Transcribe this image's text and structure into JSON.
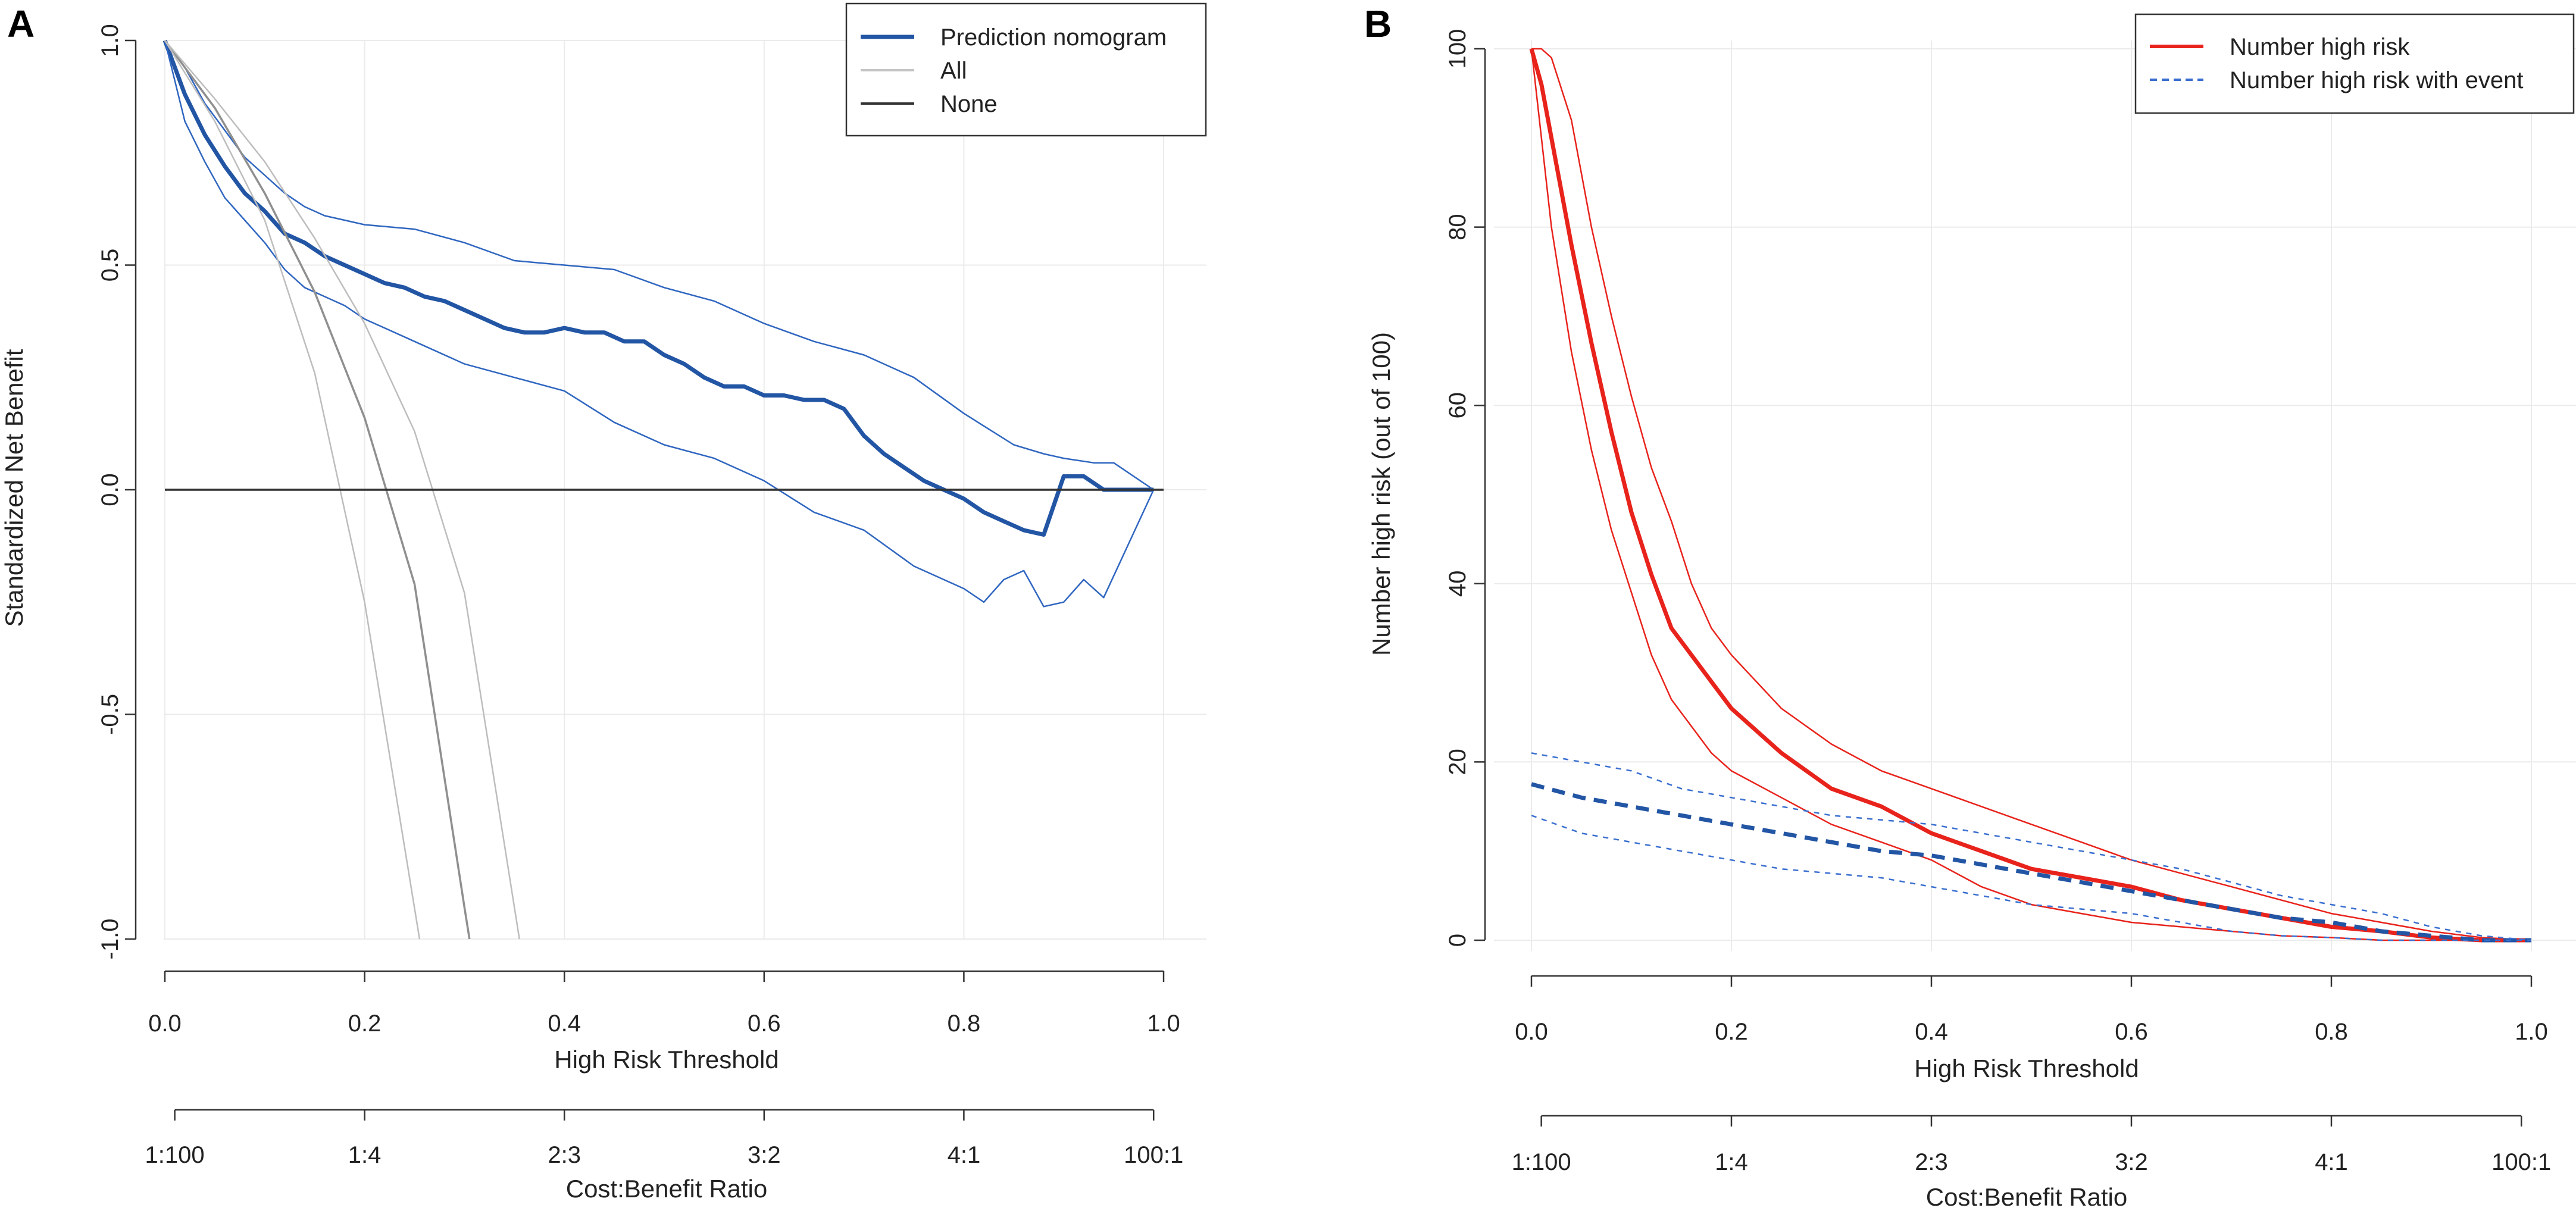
{
  "chart_data": [
    {
      "panel": "A",
      "type": "line",
      "title": "",
      "xlabel": "High Risk Threshold",
      "ylabel": "Standardized Net Benefit",
      "secondary_xlabel": "Cost:Benefit Ratio",
      "xlim": [
        0,
        1
      ],
      "ylim": [
        -1,
        1
      ],
      "xticks": [
        0.0,
        0.2,
        0.4,
        0.6,
        0.8,
        1.0
      ],
      "xtick_labels": [
        "0.0",
        "0.2",
        "0.4",
        "0.6",
        "0.8",
        "1.0"
      ],
      "yticks": [
        -1.0,
        -0.5,
        0.0,
        0.5,
        1.0
      ],
      "ytick_labels": [
        "-1.0",
        "-0.5",
        "0.0",
        "0.5",
        "1.0"
      ],
      "secondary_ticks": [
        0.0099,
        0.2,
        0.4,
        0.6,
        0.8,
        0.99
      ],
      "secondary_tick_labels": [
        "1:100",
        "1:4",
        "2:3",
        "3:2",
        "4:1",
        "100:1"
      ],
      "grid": true,
      "legend_position": "top-right",
      "legend": [
        "Prediction nomogram",
        "All",
        "None"
      ],
      "series": [
        {
          "name": "Prediction nomogram",
          "role": "estimate",
          "color": "#2255a4",
          "style": "solid",
          "weight": "thick",
          "x": [
            0,
            0.02,
            0.04,
            0.06,
            0.08,
            0.1,
            0.12,
            0.14,
            0.16,
            0.18,
            0.2,
            0.22,
            0.24,
            0.26,
            0.28,
            0.3,
            0.32,
            0.34,
            0.36,
            0.38,
            0.4,
            0.42,
            0.44,
            0.46,
            0.48,
            0.5,
            0.52,
            0.54,
            0.56,
            0.58,
            0.6,
            0.62,
            0.64,
            0.66,
            0.68,
            0.7,
            0.72,
            0.74,
            0.76,
            0.78,
            0.8,
            0.82,
            0.84,
            0.86,
            0.88,
            0.9,
            0.92,
            0.94,
            0.96,
            0.99
          ],
          "values": [
            1.0,
            0.88,
            0.79,
            0.72,
            0.66,
            0.62,
            0.57,
            0.55,
            0.52,
            0.5,
            0.48,
            0.46,
            0.45,
            0.43,
            0.42,
            0.4,
            0.38,
            0.36,
            0.35,
            0.35,
            0.36,
            0.35,
            0.35,
            0.33,
            0.33,
            0.3,
            0.28,
            0.25,
            0.23,
            0.23,
            0.21,
            0.21,
            0.2,
            0.2,
            0.18,
            0.12,
            0.08,
            0.05,
            0.02,
            0.0,
            -0.02,
            -0.05,
            -0.07,
            -0.09,
            -0.1,
            0.03,
            0.03,
            0.0,
            0.0,
            0.0
          ]
        },
        {
          "name": "Prediction nomogram upper CI",
          "role": "ci",
          "color": "#2f66c0",
          "style": "solid",
          "weight": "thin",
          "x": [
            0,
            0.02,
            0.04,
            0.06,
            0.08,
            0.1,
            0.12,
            0.14,
            0.16,
            0.18,
            0.2,
            0.25,
            0.3,
            0.35,
            0.4,
            0.45,
            0.5,
            0.55,
            0.6,
            0.65,
            0.7,
            0.75,
            0.8,
            0.85,
            0.88,
            0.9,
            0.93,
            0.95,
            0.99
          ],
          "values": [
            1.0,
            0.94,
            0.86,
            0.8,
            0.74,
            0.7,
            0.66,
            0.63,
            0.61,
            0.6,
            0.59,
            0.58,
            0.55,
            0.51,
            0.5,
            0.49,
            0.45,
            0.42,
            0.37,
            0.33,
            0.3,
            0.25,
            0.17,
            0.1,
            0.08,
            0.07,
            0.06,
            0.06,
            0.0
          ]
        },
        {
          "name": "Prediction nomogram lower CI",
          "role": "ci",
          "color": "#2f66c0",
          "style": "solid",
          "weight": "thin",
          "x": [
            0,
            0.02,
            0.04,
            0.06,
            0.08,
            0.1,
            0.12,
            0.14,
            0.16,
            0.18,
            0.2,
            0.25,
            0.3,
            0.35,
            0.4,
            0.45,
            0.5,
            0.55,
            0.6,
            0.65,
            0.7,
            0.75,
            0.8,
            0.82,
            0.84,
            0.86,
            0.88,
            0.9,
            0.92,
            0.94,
            0.99
          ],
          "values": [
            1.0,
            0.82,
            0.73,
            0.65,
            0.6,
            0.55,
            0.49,
            0.45,
            0.43,
            0.41,
            0.38,
            0.33,
            0.28,
            0.25,
            0.22,
            0.15,
            0.1,
            0.07,
            0.02,
            -0.05,
            -0.09,
            -0.17,
            -0.22,
            -0.25,
            -0.2,
            -0.18,
            -0.26,
            -0.25,
            -0.2,
            -0.24,
            0.0
          ]
        },
        {
          "name": "All",
          "role": "estimate",
          "color": "#8f8f8f",
          "style": "solid",
          "weight": "medium",
          "x": [
            0,
            0.05,
            0.1,
            0.15,
            0.2,
            0.25,
            0.3,
            0.305
          ],
          "values": [
            1.0,
            0.85,
            0.66,
            0.44,
            0.16,
            -0.21,
            -0.93,
            -1.0
          ]
        },
        {
          "name": "All upper CI",
          "role": "ci",
          "color": "#bdbdbd",
          "style": "solid",
          "weight": "thin",
          "x": [
            0,
            0.05,
            0.1,
            0.15,
            0.2,
            0.25,
            0.3,
            0.355
          ],
          "values": [
            1.0,
            0.87,
            0.73,
            0.56,
            0.37,
            0.13,
            -0.23,
            -1.0
          ]
        },
        {
          "name": "All lower CI",
          "role": "ci",
          "color": "#bdbdbd",
          "style": "solid",
          "weight": "thin",
          "x": [
            0,
            0.05,
            0.1,
            0.15,
            0.2,
            0.255
          ],
          "values": [
            1.0,
            0.82,
            0.6,
            0.26,
            -0.25,
            -1.0
          ]
        },
        {
          "name": "None",
          "role": "estimate",
          "color": "#333333",
          "style": "solid",
          "weight": "medium",
          "x": [
            0,
            1.0
          ],
          "values": [
            0,
            0
          ]
        }
      ]
    },
    {
      "panel": "B",
      "type": "line",
      "title": "",
      "xlabel": "High Risk Threshold",
      "ylabel": "Number high risk (out of 100)",
      "secondary_xlabel": "Cost:Benefit Ratio",
      "xlim": [
        0,
        1
      ],
      "ylim": [
        0,
        100
      ],
      "xticks": [
        0.0,
        0.2,
        0.4,
        0.6,
        0.8,
        1.0
      ],
      "xtick_labels": [
        "0.0",
        "0.2",
        "0.4",
        "0.6",
        "0.8",
        "1.0"
      ],
      "yticks": [
        0,
        20,
        40,
        60,
        80,
        100
      ],
      "ytick_labels": [
        "0",
        "20",
        "40",
        "60",
        "80",
        "100"
      ],
      "secondary_ticks": [
        0.0099,
        0.2,
        0.4,
        0.6,
        0.8,
        0.99
      ],
      "secondary_tick_labels": [
        "1:100",
        "1:4",
        "2:3",
        "3:2",
        "4:1",
        "100:1"
      ],
      "grid": true,
      "legend_position": "top-right",
      "legend": [
        "Number high risk",
        "Number high risk with event"
      ],
      "series": [
        {
          "name": "Number high risk",
          "role": "estimate",
          "color": "#e8231c",
          "style": "solid",
          "weight": "thick",
          "x": [
            0,
            0.01,
            0.02,
            0.04,
            0.06,
            0.08,
            0.1,
            0.12,
            0.14,
            0.16,
            0.18,
            0.2,
            0.25,
            0.3,
            0.35,
            0.4,
            0.45,
            0.5,
            0.55,
            0.6,
            0.65,
            0.7,
            0.75,
            0.8,
            0.85,
            0.9,
            0.95,
            1.0
          ],
          "values": [
            100,
            96,
            90,
            78,
            67,
            57,
            48,
            41,
            35,
            32,
            29,
            26,
            21,
            17,
            15,
            12,
            10,
            8,
            7,
            6,
            4.5,
            3.5,
            2.5,
            1.5,
            1.0,
            0.3,
            0,
            0
          ]
        },
        {
          "name": "Number high risk upper CI",
          "role": "ci",
          "color": "#e8231c",
          "style": "solid",
          "weight": "thin",
          "x": [
            0,
            0.01,
            0.02,
            0.04,
            0.06,
            0.08,
            0.1,
            0.12,
            0.14,
            0.16,
            0.18,
            0.2,
            0.25,
            0.3,
            0.35,
            0.4,
            0.45,
            0.5,
            0.55,
            0.6,
            0.65,
            0.7,
            0.75,
            0.8,
            0.85,
            0.9,
            0.95,
            1.0
          ],
          "values": [
            100,
            100,
            99,
            92,
            80,
            70,
            61,
            53,
            47,
            40,
            35,
            32,
            26,
            22,
            19,
            17,
            15,
            13,
            11,
            9,
            7.5,
            6,
            4.5,
            3,
            2,
            1,
            0.3,
            0
          ]
        },
        {
          "name": "Number high risk lower CI",
          "role": "ci",
          "color": "#e8231c",
          "style": "solid",
          "weight": "thin",
          "x": [
            0,
            0.01,
            0.02,
            0.04,
            0.06,
            0.08,
            0.1,
            0.12,
            0.14,
            0.16,
            0.18,
            0.2,
            0.25,
            0.3,
            0.35,
            0.4,
            0.45,
            0.5,
            0.55,
            0.6,
            0.65,
            0.7,
            0.75,
            0.8,
            0.85,
            0.9,
            0.95,
            1.0
          ],
          "values": [
            100,
            90,
            80,
            66,
            55,
            46,
            39,
            32,
            27,
            24,
            21,
            19,
            16,
            13,
            11,
            9,
            6,
            4,
            3,
            2,
            1.5,
            1,
            0.5,
            0.3,
            0,
            0,
            0,
            0
          ]
        },
        {
          "name": "Number high risk with event",
          "role": "estimate",
          "color": "#2255a4",
          "style": "dashed",
          "weight": "thick",
          "x": [
            0,
            0.05,
            0.1,
            0.15,
            0.2,
            0.25,
            0.3,
            0.35,
            0.4,
            0.45,
            0.5,
            0.55,
            0.6,
            0.65,
            0.7,
            0.75,
            0.8,
            0.85,
            0.9,
            0.95,
            1.0
          ],
          "values": [
            17.5,
            16,
            15,
            14,
            13,
            12,
            11,
            10,
            9.5,
            8.5,
            7.5,
            6.5,
            5.5,
            4.5,
            3.5,
            2.5,
            2,
            1,
            0.5,
            0,
            0
          ]
        },
        {
          "name": "Number high risk with event upper CI",
          "role": "ci",
          "color": "#3a6fd0",
          "style": "dotted",
          "weight": "thin",
          "x": [
            0,
            0.05,
            0.1,
            0.15,
            0.2,
            0.25,
            0.3,
            0.35,
            0.4,
            0.45,
            0.5,
            0.55,
            0.6,
            0.65,
            0.7,
            0.75,
            0.8,
            0.85,
            0.9,
            0.95,
            1.0
          ],
          "values": [
            21,
            20,
            19,
            17,
            16,
            15,
            14,
            13.5,
            13,
            12,
            11,
            10,
            9,
            8,
            6.5,
            5,
            4,
            3,
            1.5,
            0.5,
            0
          ]
        },
        {
          "name": "Number high risk with event lower CI",
          "role": "ci",
          "color": "#3a6fd0",
          "style": "dotted",
          "weight": "thin",
          "x": [
            0,
            0.05,
            0.1,
            0.15,
            0.2,
            0.25,
            0.3,
            0.35,
            0.4,
            0.45,
            0.5,
            0.55,
            0.6,
            0.65,
            0.7,
            0.75,
            0.8,
            0.85,
            0.9,
            0.95,
            1.0
          ],
          "values": [
            14,
            12,
            11,
            10,
            9,
            8,
            7.5,
            7,
            6,
            5,
            4,
            3.5,
            3,
            2,
            1,
            0.5,
            0.3,
            0,
            0,
            0,
            0
          ]
        }
      ]
    }
  ]
}
